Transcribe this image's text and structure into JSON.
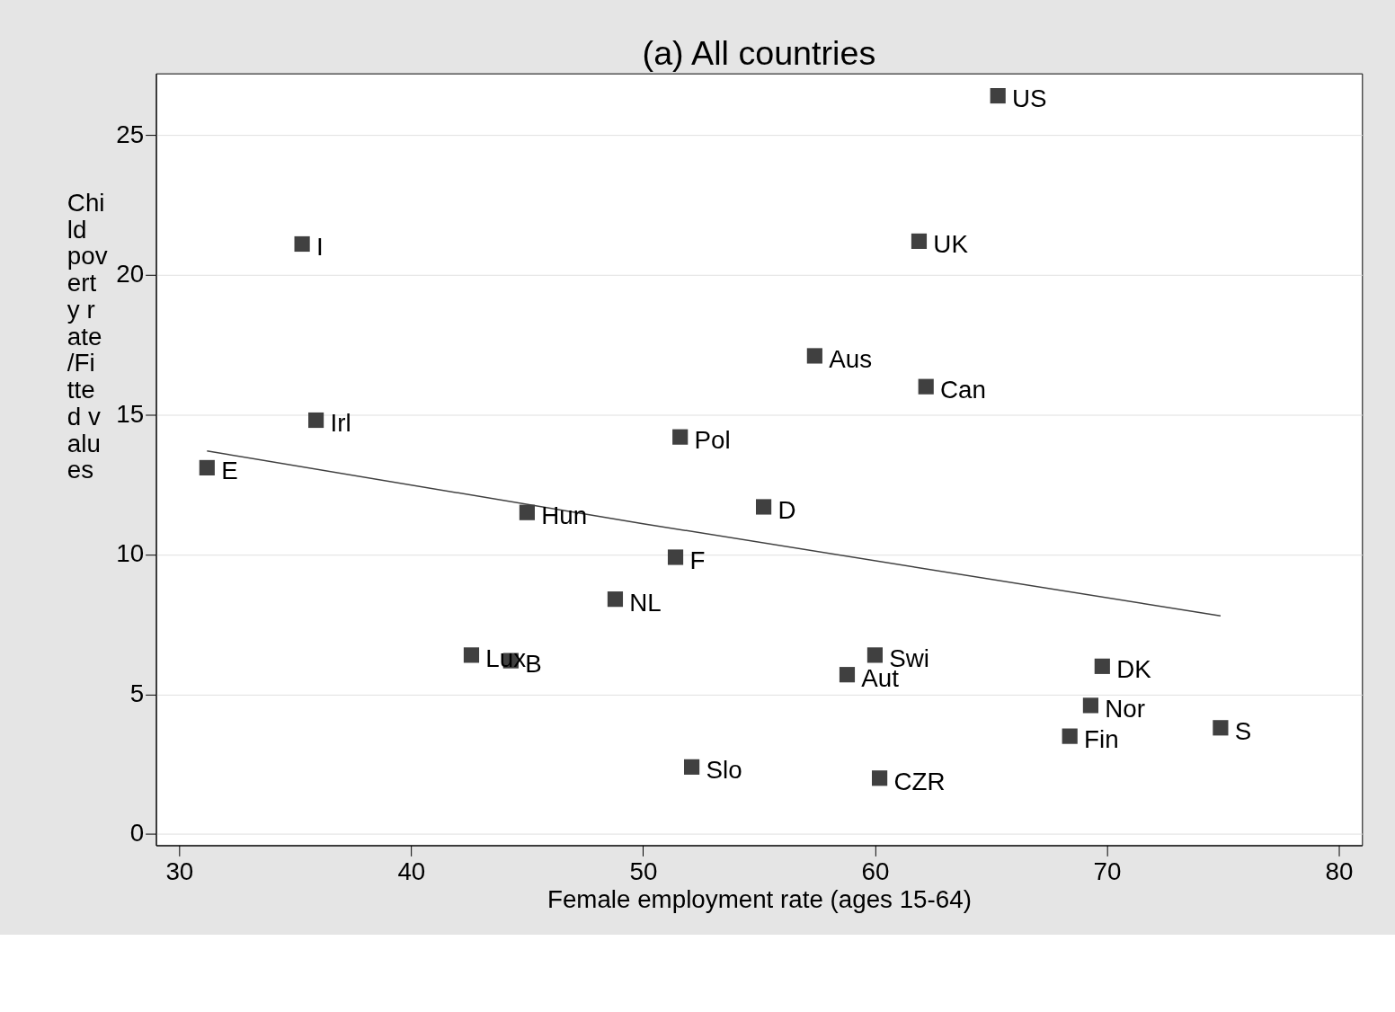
{
  "chart_data": {
    "type": "scatter",
    "title": "(a) All countries",
    "xlabel": "Female employment rate (ages 15-64)",
    "ylabel": "Child poverty rate/Fitted values",
    "xlim": [
      29.0,
      81.0
    ],
    "xticks": [
      30,
      40,
      50,
      60,
      70,
      80
    ],
    "ylim": [
      -0.4,
      27.2
    ],
    "yticks": [
      0,
      5,
      10,
      15,
      20,
      25
    ],
    "grid": "y",
    "series": [
      {
        "color": "#404040",
        "marker": "square",
        "x": [
          65.3,
          35.3,
          61.9,
          57.4,
          62.2,
          35.9,
          51.6,
          31.2,
          45.0,
          55.2,
          51.4,
          48.8,
          42.6,
          44.3,
          60.0,
          58.8,
          69.8,
          69.3,
          68.4,
          74.9,
          52.1,
          60.2
        ],
        "values": [
          26.4,
          21.1,
          21.2,
          17.1,
          16.0,
          14.8,
          14.2,
          13.1,
          11.5,
          11.7,
          9.9,
          8.4,
          6.4,
          6.2,
          6.4,
          5.7,
          6.0,
          4.6,
          3.5,
          3.8,
          2.4,
          2.0
        ]
      },
      {
        "type": "line",
        "color": "#404040",
        "x": [
          31.2,
          50.0,
          74.9
        ],
        "values": [
          13.7,
          11.1,
          7.8
        ],
        "line_style": "solid"
      }
    ],
    "annotations": [
      {
        "text": "US",
        "x": 65.3,
        "y": 26.4
      },
      {
        "text": "I",
        "x": 35.3,
        "y": 21.1
      },
      {
        "text": "UK",
        "x": 61.9,
        "y": 21.2
      },
      {
        "text": "Aus",
        "x": 57.4,
        "y": 17.1
      },
      {
        "text": "Can",
        "x": 62.2,
        "y": 16.0
      },
      {
        "text": "Irl",
        "x": 35.9,
        "y": 14.8
      },
      {
        "text": "Pol",
        "x": 51.6,
        "y": 14.2
      },
      {
        "text": "E",
        "x": 31.2,
        "y": 13.1
      },
      {
        "text": "Hun",
        "x": 45.0,
        "y": 11.5
      },
      {
        "text": "D",
        "x": 55.2,
        "y": 11.7
      },
      {
        "text": "F",
        "x": 51.4,
        "y": 9.9
      },
      {
        "text": "NL",
        "x": 48.8,
        "y": 8.4
      },
      {
        "text": "Lux",
        "x": 42.6,
        "y": 6.4
      },
      {
        "text": "B",
        "x": 44.3,
        "y": 6.2
      },
      {
        "text": "Swi",
        "x": 60.0,
        "y": 6.4
      },
      {
        "text": "Aut",
        "x": 58.8,
        "y": 5.7
      },
      {
        "text": "DK",
        "x": 69.8,
        "y": 6.0
      },
      {
        "text": "Nor",
        "x": 69.3,
        "y": 4.6
      },
      {
        "text": "Fin",
        "x": 68.4,
        "y": 3.5
      },
      {
        "text": "S",
        "x": 74.9,
        "y": 3.8
      },
      {
        "text": "Slo",
        "x": 52.1,
        "y": 2.4
      },
      {
        "text": "CZR",
        "x": 60.2,
        "y": 2.0
      }
    ]
  }
}
